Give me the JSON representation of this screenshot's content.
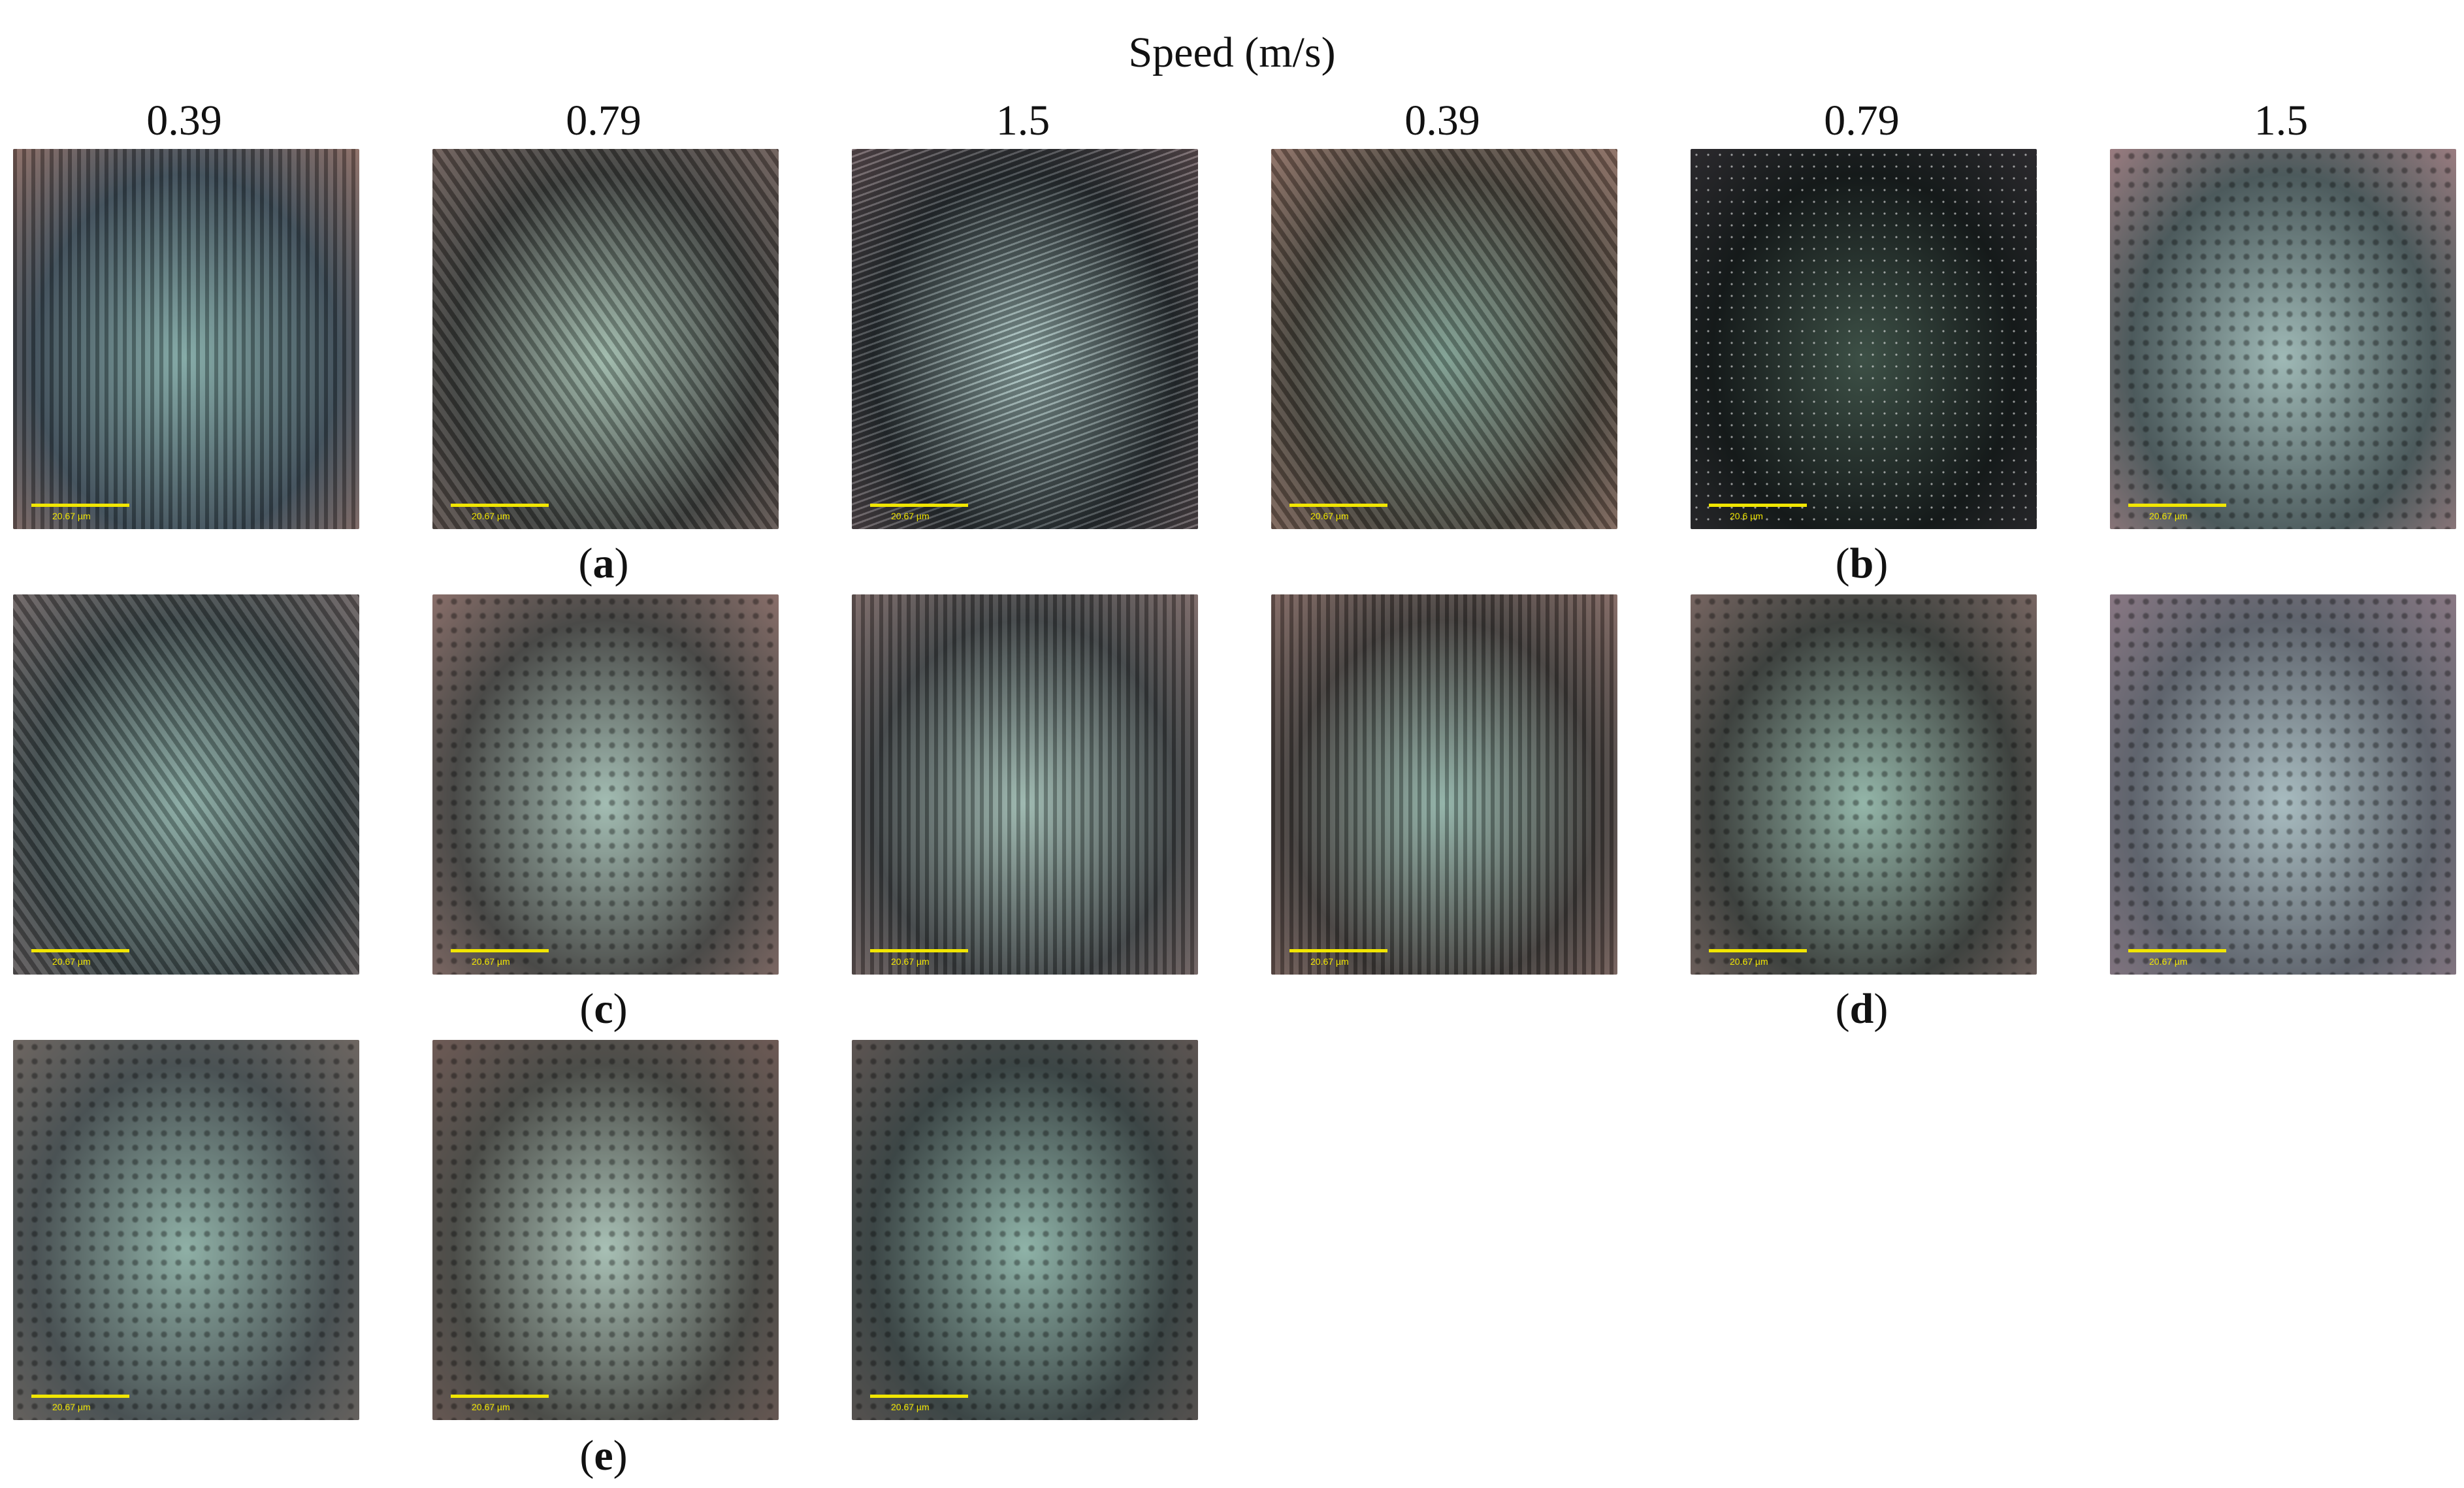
{
  "figure": {
    "speed_title": "Speed (m/s)",
    "columns": [
      "0.39",
      "0.79",
      "1.5",
      "0.39",
      "0.79",
      "1.5"
    ],
    "captions": {
      "a": "a",
      "b": "b",
      "c": "c",
      "d": "d",
      "e": "e"
    },
    "panels": [
      {
        "group": "a",
        "speed": "0.39",
        "scale": "20.67 µm",
        "base": "#3b4a55",
        "tint": "#7fa7a3",
        "edge": "#8a6a62",
        "streak": "vert"
      },
      {
        "group": "a",
        "speed": "0.79",
        "scale": "20.67 µm",
        "base": "#3a3c3a",
        "tint": "#9bb7a8",
        "edge": "#6a5a55",
        "streak": "diag"
      },
      {
        "group": "a",
        "speed": "1.5",
        "scale": "20.67 µm",
        "base": "#2d3438",
        "tint": "#a9c6c3",
        "edge": "#6b5a5e",
        "streak": "diag2"
      },
      {
        "group": "b",
        "speed": "0.39",
        "scale": "20.67 µm",
        "base": "#46423a",
        "tint": "#7a9c8e",
        "edge": "#8a6b5f",
        "streak": "diag"
      },
      {
        "group": "b",
        "speed": "0.79",
        "scale": "20.6 µm",
        "base": "#151a1a",
        "tint": "#3d5046",
        "edge": "#2c2a2e",
        "streak": "dots"
      },
      {
        "group": "b",
        "speed": "1.5",
        "scale": "20.67 µm",
        "base": "#4c5a5c",
        "tint": "#9fb9b6",
        "edge": "#9a7c80",
        "streak": "none"
      },
      {
        "group": "c",
        "speed": "0.39",
        "scale": "20.67 µm",
        "base": "#3a4547",
        "tint": "#86a9a1",
        "edge": "#6a6060",
        "streak": "diag"
      },
      {
        "group": "c",
        "speed": "0.79",
        "scale": "20.67 µm",
        "base": "#4a4a48",
        "tint": "#a3bdb3",
        "edge": "#8a6f6a",
        "streak": "none"
      },
      {
        "group": "c",
        "speed": "1.5",
        "scale": "20.67 µm",
        "base": "#3e4244",
        "tint": "#9ab6ad",
        "edge": "#7a6765",
        "streak": "vert"
      },
      {
        "group": "d",
        "speed": "0.39",
        "scale": "20.67 µm",
        "base": "#423e3c",
        "tint": "#8fb1a6",
        "edge": "#806660",
        "streak": "vert"
      },
      {
        "group": "d",
        "speed": "0.79",
        "scale": "20.67 µm",
        "base": "#3e423f",
        "tint": "#94b6a9",
        "edge": "#786662",
        "streak": "none"
      },
      {
        "group": "d",
        "speed": "1.5",
        "scale": "20.67 µm",
        "base": "#5f646d",
        "tint": "#a8bcc0",
        "edge": "#8a7884",
        "streak": "none"
      },
      {
        "group": "e",
        "speed": "0.39",
        "scale": "20.67 µm",
        "base": "#4a5254",
        "tint": "#8fb0a6",
        "edge": "#6e6661",
        "streak": "none"
      },
      {
        "group": "e",
        "speed": "0.79",
        "scale": "20.67 µm",
        "base": "#4c4d49",
        "tint": "#a8c0b5",
        "edge": "#6e5a55",
        "streak": "none"
      },
      {
        "group": "e",
        "speed": "1.5",
        "scale": "20.67 µm",
        "base": "#3c4646",
        "tint": "#8fb3a8",
        "edge": "#5e5552",
        "streak": "none"
      }
    ]
  }
}
